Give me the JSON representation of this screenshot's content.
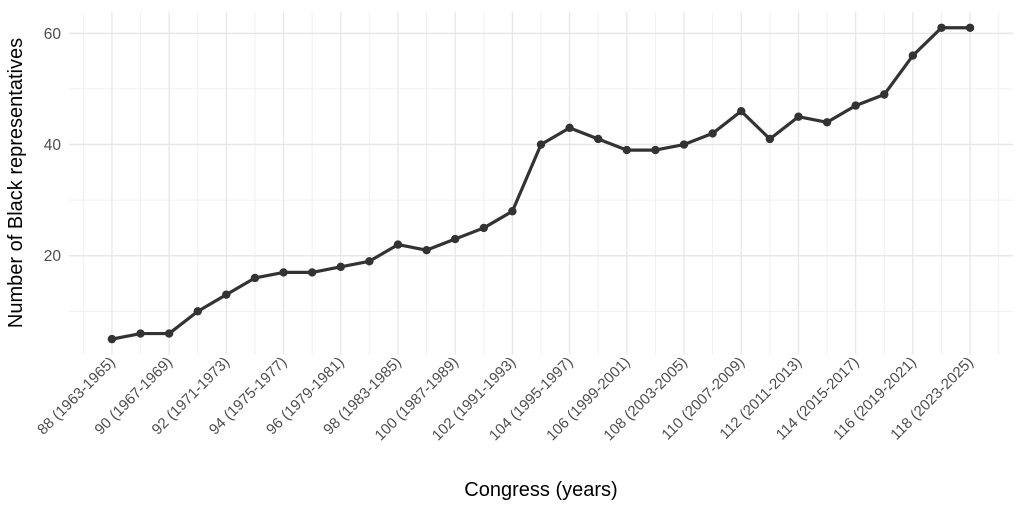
{
  "chart_data": {
    "type": "line",
    "title": "",
    "xlabel": "Congress (years)",
    "ylabel": "Number of Black representatives",
    "x": [
      88,
      89,
      90,
      91,
      92,
      93,
      94,
      95,
      96,
      97,
      98,
      99,
      100,
      101,
      102,
      103,
      104,
      105,
      106,
      107,
      108,
      109,
      110,
      111,
      112,
      113,
      114,
      115,
      116,
      117,
      118
    ],
    "series": [
      {
        "name": "Number of Black representatives",
        "values": [
          5,
          6,
          6,
          10,
          13,
          16,
          17,
          17,
          18,
          19,
          22,
          21,
          23,
          25,
          28,
          40,
          43,
          41,
          39,
          39,
          40,
          42,
          46,
          41,
          45,
          44,
          47,
          49,
          56,
          61,
          61
        ]
      }
    ],
    "x_tick_labels": [
      {
        "x": 88,
        "label": "88 (1963-1965)"
      },
      {
        "x": 90,
        "label": "90 (1967-1969)"
      },
      {
        "x": 92,
        "label": "92 (1971-1973)"
      },
      {
        "x": 94,
        "label": "94 (1975-1977)"
      },
      {
        "x": 96,
        "label": "96 (1979-1981)"
      },
      {
        "x": 98,
        "label": "98 (1983-1985)"
      },
      {
        "x": 100,
        "label": "100 (1987-1989)"
      },
      {
        "x": 102,
        "label": "102 (1991-1993)"
      },
      {
        "x": 104,
        "label": "104 (1995-1997)"
      },
      {
        "x": 106,
        "label": "106 (1999-2001)"
      },
      {
        "x": 108,
        "label": "108 (2003-2005)"
      },
      {
        "x": 110,
        "label": "110 (2007-2009)"
      },
      {
        "x": 112,
        "label": "112 (2011-2013)"
      },
      {
        "x": 114,
        "label": "114 (2015-2017)"
      },
      {
        "x": 116,
        "label": "116 (2019-2021)"
      },
      {
        "x": 118,
        "label": "118 (2023-2025)"
      }
    ],
    "y_ticks": [
      20,
      40,
      60
    ],
    "y_minor_gridlines": [
      10,
      30,
      50
    ],
    "x_minor_gridlines_at_odd_congresses": true,
    "xlim": [
      86.5,
      119.5
    ],
    "ylim": [
      2.2,
      63.8
    ],
    "grid": true,
    "legend": "none",
    "x_tick_rotation_deg": 45,
    "colors": {
      "line": "#333333",
      "point": "#333333",
      "grid_major": "#e7e7e7",
      "grid_minor": "#f0f0f0",
      "tick_text": "#4d4d4d",
      "title_text": "#000000",
      "background": "#ffffff"
    }
  }
}
